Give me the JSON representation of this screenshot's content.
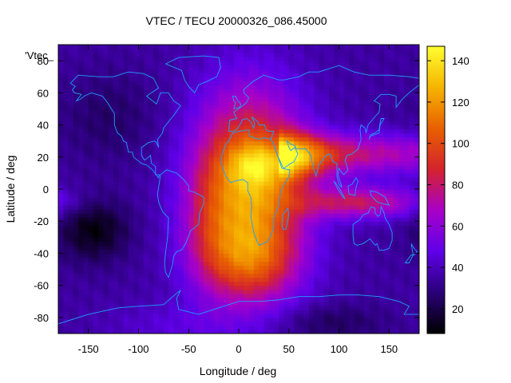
{
  "chart_data": {
    "type": "heatmap",
    "title": "VTEC / TECU 20000326_086.45000",
    "xlabel": "Longitude / deg",
    "ylabel": "Latitude / deg",
    "legend_key": "'Vtec_",
    "xlim": [
      -180,
      180
    ],
    "ylim": [
      -90,
      90
    ],
    "x_ticks": [
      -150,
      -100,
      -50,
      0,
      50,
      100,
      150
    ],
    "y_ticks": [
      -80,
      -60,
      -40,
      -20,
      0,
      20,
      40,
      60,
      80
    ],
    "x_tick_labels": [
      "-150",
      "-100",
      "-50",
      "0",
      "50",
      "100",
      "150"
    ],
    "y_tick_labels": [
      "-80",
      "-60",
      "-40",
      "-20",
      "0",
      "20",
      "40",
      "60",
      "80"
    ],
    "colorbar": {
      "range": [
        8,
        147
      ],
      "ticks": [
        20,
        40,
        60,
        80,
        100,
        120,
        140
      ],
      "tick_labels": [
        "20",
        "40",
        "60",
        "80",
        "100",
        "120",
        "140"
      ],
      "stops": [
        "#000000",
        "#2a0078",
        "#5f00e8",
        "#a800c8",
        "#d4232d",
        "#e86000",
        "#f6b400",
        "#ffff30"
      ]
    },
    "coastline_color": "#1ea0ff",
    "grid": false,
    "features": {
      "daytime_peak": {
        "lon": 20,
        "lat": 15,
        "value": 145
      },
      "arabian_extension": {
        "lon": 60,
        "lat": 20,
        "value": 120
      },
      "asian_tongue": {
        "lon_range": [
          60,
          180
        ],
        "lat": 22,
        "value": 100
      },
      "south_tongue": {
        "lon_range": [
          80,
          160
        ],
        "lat": -8,
        "value": 95
      },
      "south_atlantic_region": {
        "lon": 10,
        "lat": -45,
        "value": 90
      },
      "nightside_minimum": {
        "lon": -145,
        "lat": -25,
        "value": 10
      },
      "nightside_background": 35
    }
  }
}
